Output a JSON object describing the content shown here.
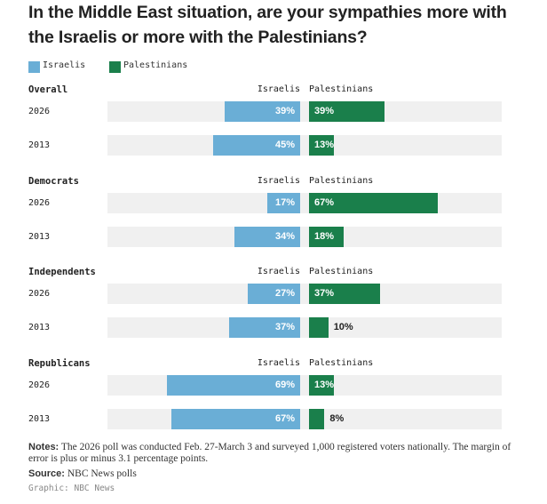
{
  "title": "In the Middle East situation, are your sympathies more with the Israelis or more with the Palestinians?",
  "legend": {
    "israelis": "Israelis",
    "palestinians": "Palestinians"
  },
  "colors": {
    "israelis": "#6aaed6",
    "palestinians": "#1a7f4b",
    "track": "#f0f0f0"
  },
  "chart_data": {
    "type": "bar",
    "title": "In the Middle East situation, are your sympathies more with the Israelis or more with the Palestinians?",
    "unit": "%",
    "xlim": [
      0,
      100
    ],
    "legend_placement": "top-left",
    "series": [
      {
        "name": "Israelis"
      },
      {
        "name": "Palestinians"
      }
    ],
    "groups": [
      {
        "name": "Overall",
        "col_israelis": "Israelis",
        "col_palestinians": "Palestinians",
        "rows": [
          {
            "year": "2026",
            "israelis": 39,
            "israelis_label": "39%",
            "palestinians": 39,
            "palestinians_label": "39%"
          },
          {
            "year": "2013",
            "israelis": 45,
            "israelis_label": "45%",
            "palestinians": 13,
            "palestinians_label": "13%"
          }
        ]
      },
      {
        "name": "Democrats",
        "col_israelis": "Israelis",
        "col_palestinians": "Palestinians",
        "rows": [
          {
            "year": "2026",
            "israelis": 17,
            "israelis_label": "17%",
            "palestinians": 67,
            "palestinians_label": "67%"
          },
          {
            "year": "2013",
            "israelis": 34,
            "israelis_label": "34%",
            "palestinians": 18,
            "palestinians_label": "18%"
          }
        ]
      },
      {
        "name": "Independents",
        "col_israelis": "Israelis",
        "col_palestinians": "Palestinians",
        "rows": [
          {
            "year": "2026",
            "israelis": 27,
            "israelis_label": "27%",
            "palestinians": 37,
            "palestinians_label": "37%"
          },
          {
            "year": "2013",
            "israelis": 37,
            "israelis_label": "37%",
            "palestinians": 10,
            "palestinians_label": "10%"
          }
        ]
      },
      {
        "name": "Republicans",
        "col_israelis": "Israelis",
        "col_palestinians": "Palestinians",
        "rows": [
          {
            "year": "2026",
            "israelis": 69,
            "israelis_label": "69%",
            "palestinians": 13,
            "palestinians_label": "13%"
          },
          {
            "year": "2013",
            "israelis": 67,
            "israelis_label": "67%",
            "palestinians": 8,
            "palestinians_label": "8%"
          }
        ]
      }
    ]
  },
  "notes": {
    "label": "Notes:",
    "text": "The 2026 poll was conducted Feb. 27-March 3 and surveyed 1,000 registered voters nationally. The margin of error is plus or minus 3.1 percentage points."
  },
  "source": {
    "label": "Source:",
    "text": "NBC News polls"
  },
  "graphic_credit": "Graphic: NBC News"
}
